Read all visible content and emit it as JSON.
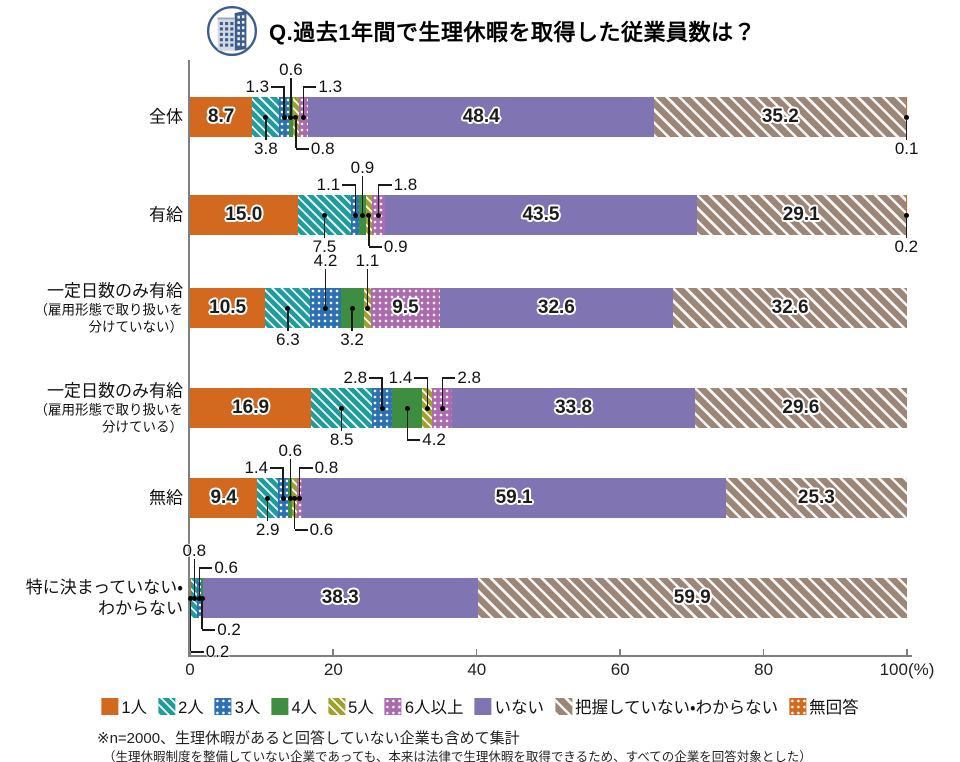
{
  "chart_data": {
    "type": "bar",
    "subtype": "horizontal-stacked",
    "title": "Q.過去1年間で生理休暇を取得した従業員数は？",
    "unit": "%",
    "xlim": [
      0,
      100
    ],
    "x_ticks": [
      "0",
      "20",
      "40",
      "60",
      "80",
      "100(%)"
    ],
    "grid": false,
    "legend_position": "bottom",
    "series": [
      {
        "name": "1人",
        "color": "#d2691e",
        "pattern": "solid"
      },
      {
        "name": "2人",
        "color": "#219c9c",
        "pattern": "hatch"
      },
      {
        "name": "3人",
        "color": "#2d6fb3",
        "pattern": "dots"
      },
      {
        "name": "4人",
        "color": "#3e8e41",
        "pattern": "solid"
      },
      {
        "name": "5人",
        "color": "#a0a02f",
        "pattern": "hatch"
      },
      {
        "name": "6人以上",
        "color": "#ab69ae",
        "pattern": "dots"
      },
      {
        "name": "いない",
        "color": "#8174b2",
        "pattern": "solid"
      },
      {
        "name": "把握していない・わからない",
        "color": "#9c8678",
        "pattern": "hatch-wide"
      },
      {
        "name": "無回答",
        "color": "#d2691e",
        "pattern": "dots"
      }
    ],
    "rows": [
      {
        "label_lines": [
          "全体"
        ],
        "values": [
          8.7,
          3.8,
          1.3,
          0.6,
          0.8,
          1.3,
          48.4,
          35.2,
          0.1
        ],
        "inside": [
          0,
          6,
          7
        ],
        "callouts": [
          {
            "series": 2,
            "text": "1.3",
            "side": "above",
            "tier": 2,
            "anchor": "left"
          },
          {
            "series": 3,
            "text": "0.6",
            "side": "above",
            "tier": 1,
            "anchor": "center"
          },
          {
            "series": 5,
            "text": "1.3",
            "side": "above",
            "tier": 2,
            "anchor": "right"
          },
          {
            "series": 1,
            "text": "3.8",
            "side": "below",
            "tier": 1,
            "anchor": "center"
          },
          {
            "series": 4,
            "text": "0.8",
            "side": "below",
            "tier": 1,
            "anchor": "right"
          },
          {
            "series": 8,
            "text": "0.1",
            "side": "below",
            "tier": 1,
            "anchor": "center"
          }
        ]
      },
      {
        "label_lines": [
          "有給"
        ],
        "values": [
          15.0,
          7.5,
          1.1,
          0.9,
          0.9,
          1.8,
          43.5,
          29.1,
          0.2
        ],
        "inside": [
          0,
          6,
          7
        ],
        "callouts": [
          {
            "series": 2,
            "text": "1.1",
            "side": "above",
            "tier": 2,
            "anchor": "left"
          },
          {
            "series": 3,
            "text": "0.9",
            "side": "above",
            "tier": 1,
            "anchor": "center"
          },
          {
            "series": 5,
            "text": "1.8",
            "side": "above",
            "tier": 2,
            "anchor": "right"
          },
          {
            "series": 1,
            "text": "7.5",
            "side": "below",
            "tier": 1,
            "anchor": "center"
          },
          {
            "series": 4,
            "text": "0.9",
            "side": "below",
            "tier": 1,
            "anchor": "right"
          },
          {
            "series": 8,
            "text": "0.2",
            "side": "below",
            "tier": 1,
            "anchor": "center"
          }
        ]
      },
      {
        "label_lines": [
          "一定日数のみ有給",
          "（雇用形態で取り扱いを",
          "分けていない）"
        ],
        "values": [
          10.5,
          6.3,
          4.2,
          3.2,
          1.1,
          9.5,
          32.6,
          32.6,
          0
        ],
        "inside": [
          0,
          5,
          6,
          7
        ],
        "callouts": [
          {
            "series": 2,
            "text": "4.2",
            "side": "above",
            "tier": 1,
            "anchor": "center"
          },
          {
            "series": 4,
            "text": "1.1",
            "side": "above",
            "tier": 1,
            "anchor": "center"
          },
          {
            "series": 1,
            "text": "6.3",
            "side": "below",
            "tier": 1,
            "anchor": "center"
          },
          {
            "series": 3,
            "text": "3.2",
            "side": "below",
            "tier": 1,
            "anchor": "center"
          }
        ]
      },
      {
        "label_lines": [
          "一定日数のみ有給",
          "（雇用形態で取り扱いを",
          "分けている）"
        ],
        "values": [
          16.9,
          8.5,
          2.8,
          4.2,
          1.4,
          2.8,
          33.8,
          29.6,
          0
        ],
        "inside": [
          0,
          6,
          7
        ],
        "callouts": [
          {
            "series": 2,
            "text": "2.8",
            "side": "above",
            "tier": 2,
            "anchor": "left"
          },
          {
            "series": 4,
            "text": "1.4",
            "side": "above",
            "tier": 2,
            "anchor": "left"
          },
          {
            "series": 5,
            "text": "2.8",
            "side": "above",
            "tier": 2,
            "anchor": "right"
          },
          {
            "series": 1,
            "text": "8.5",
            "side": "below",
            "tier": 1,
            "anchor": "center"
          },
          {
            "series": 3,
            "text": "4.2",
            "side": "below",
            "tier": 1,
            "anchor": "right"
          }
        ]
      },
      {
        "label_lines": [
          "無給"
        ],
        "values": [
          9.4,
          2.9,
          1.4,
          0.6,
          0.6,
          0.8,
          59.1,
          25.3,
          0
        ],
        "inside": [
          0,
          6,
          7
        ],
        "callouts": [
          {
            "series": 2,
            "text": "1.4",
            "side": "above",
            "tier": 2,
            "anchor": "left"
          },
          {
            "series": 3,
            "text": "0.6",
            "side": "above",
            "tier": 1,
            "anchor": "center"
          },
          {
            "series": 5,
            "text": "0.8",
            "side": "above",
            "tier": 2,
            "anchor": "right"
          },
          {
            "series": 1,
            "text": "2.9",
            "side": "below",
            "tier": 1,
            "anchor": "center"
          },
          {
            "series": 4,
            "text": "0.6",
            "side": "below",
            "tier": 1,
            "anchor": "right"
          }
        ]
      },
      {
        "label_lines": [
          "特に決まっていない・",
          "わからない"
        ],
        "values": [
          0.2,
          0.8,
          0.6,
          0.2,
          0,
          0,
          38.3,
          59.9,
          0
        ],
        "inside": [
          6,
          7
        ],
        "callouts": [
          {
            "series": 1,
            "text": "0.8",
            "side": "above",
            "tier": 1,
            "anchor": "center"
          },
          {
            "series": 2,
            "text": "0.6",
            "side": "above",
            "tier": 2,
            "anchor": "right"
          },
          {
            "series": 3,
            "text": "0.2",
            "side": "below",
            "tier": 1,
            "anchor": "right"
          },
          {
            "series": 0,
            "text": "0.2",
            "side": "below",
            "tier": 2,
            "anchor": "right"
          }
        ]
      }
    ]
  },
  "footnotes": {
    "line1": "※n=2000、生理休暇があると回答していない企業も含めて集計",
    "line2": "（生理休暇制度を整備していない企業であっても、本来は法律で生理休暇を取得できるため、すべての企業を回答対象とした）"
  }
}
